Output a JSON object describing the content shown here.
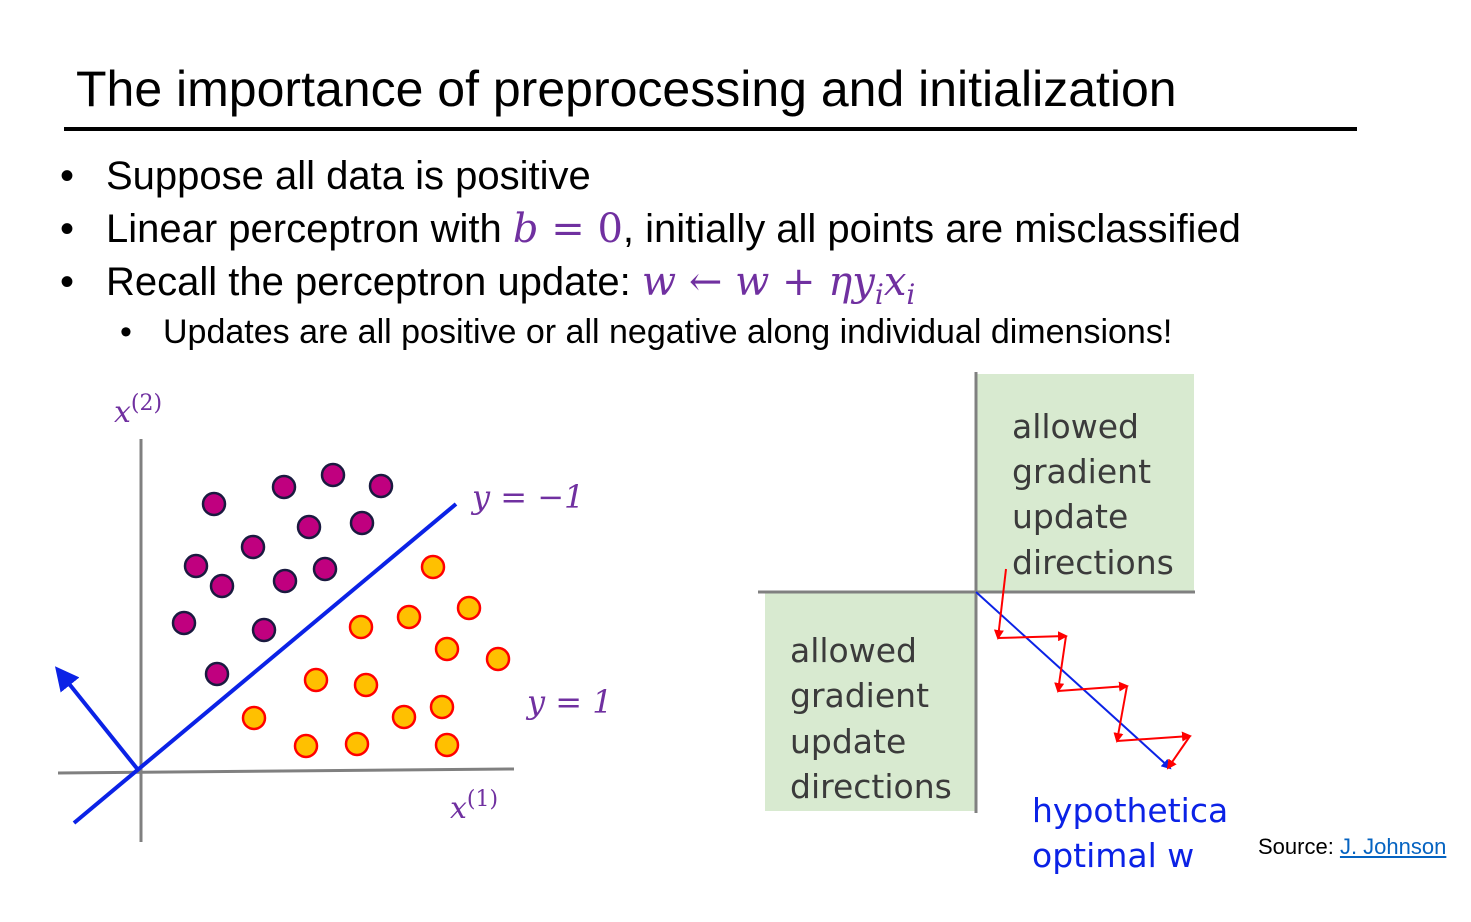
{
  "slide": {
    "title": "The importance of preprocessing and initialization",
    "bullets": [
      {
        "text": "Suppose all data is positive"
      },
      {
        "pre": "Linear perceptron with ",
        "math_b": "b",
        "math_eq": " = 0",
        "post": ", initially all points are misclassified"
      },
      {
        "pre": "Recall the perceptron update: ",
        "math": "w ← w + ηy",
        "sub1": "i",
        "mathx": "x",
        "sub2": "i"
      }
    ],
    "subbullets": [
      {
        "text": "Updates are all positive or all negative along individual dimensions!"
      }
    ]
  },
  "scatter": {
    "axis_x_label": "x",
    "axis_x_sup": "(1)",
    "axis_y_label": "x",
    "axis_y_sup": "(2)",
    "label_neg": "y = −1",
    "label_pos": "y = 1",
    "colors": {
      "negative": "#c0007f",
      "positive": "#ffc000",
      "positive_stroke": "#ff0000",
      "line": "#0b22e6",
      "label": "#7030a0",
      "axis": "#808080"
    },
    "negative_points": [
      [
        214,
        504
      ],
      [
        284,
        487
      ],
      [
        333,
        475
      ],
      [
        381,
        486
      ],
      [
        309,
        527
      ],
      [
        362,
        523
      ],
      [
        253,
        547
      ],
      [
        196,
        566
      ],
      [
        222,
        586
      ],
      [
        285,
        581
      ],
      [
        325,
        569
      ],
      [
        184,
        623
      ],
      [
        264,
        630
      ],
      [
        217,
        674
      ]
    ],
    "positive_points": [
      [
        433,
        567
      ],
      [
        469,
        608
      ],
      [
        409,
        617
      ],
      [
        361,
        627
      ],
      [
        447,
        649
      ],
      [
        498,
        659
      ],
      [
        316,
        680
      ],
      [
        366,
        685
      ],
      [
        442,
        707
      ],
      [
        404,
        717
      ],
      [
        254,
        718
      ],
      [
        306,
        746
      ],
      [
        357,
        744
      ],
      [
        447,
        745
      ]
    ]
  },
  "quadrant": {
    "box_top_lines": [
      "allowed",
      "gradient",
      "update",
      "directions"
    ],
    "box_bottom_lines": [
      "allowed",
      "gradient",
      "update",
      "directions"
    ],
    "optimal_lines": [
      "hypothetical",
      "optimal w"
    ],
    "colors": {
      "box": "#d8ead0",
      "text": "#3b3b3b",
      "optimal": "#0b22e6",
      "zigzag": "#ff0000",
      "axis": "#808080"
    }
  },
  "source": {
    "label": "Source: ",
    "link": "J. Johnson"
  }
}
